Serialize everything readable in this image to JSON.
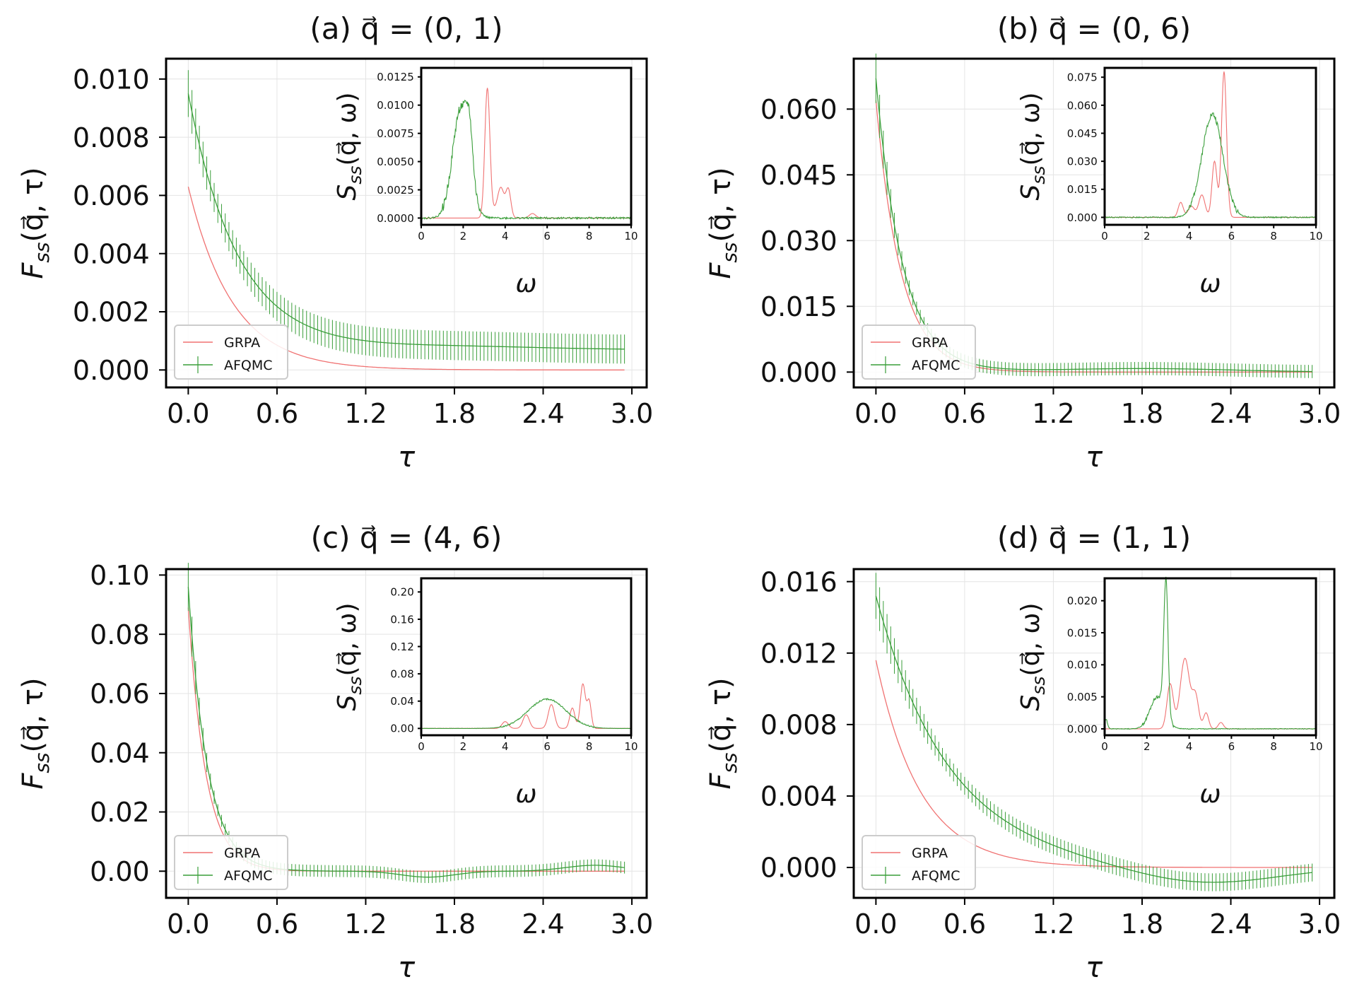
{
  "colors": {
    "grpa": "#f07272",
    "afqmc": "#3a9e3a",
    "axis": "#000000",
    "grid": "#e4e4e4"
  },
  "legend": [
    "GRPA",
    "AFQMC"
  ],
  "chart_data": [
    {
      "id": "a",
      "type": "line",
      "title": "(a)  q⃗ = (0, 1)",
      "panel_label": "(a)",
      "q_label": "q⃗ = (0, 1)",
      "xlabel": "τ",
      "ylabel": "F_ss(q⃗, τ)",
      "xlim": [
        -0.15,
        3.1
      ],
      "ylim": [
        -0.0006,
        0.0107
      ],
      "xticks": [
        "0.0",
        "0.6",
        "1.2",
        "1.8",
        "2.4",
        "3.0"
      ],
      "yticks": [
        "0.000",
        "0.002",
        "0.004",
        "0.006",
        "0.008",
        "0.010"
      ],
      "legend_position": "lower left",
      "series": [
        {
          "name": "GRPA",
          "model": {
            "A": 0.0063,
            "tau": 0.3,
            "osc": [],
            "min_err": 0
          }
        },
        {
          "name": "AFQMC",
          "errorbars": true,
          "model": {
            "A": 0.0095,
            "tau": 0.34,
            "c": 0.0007,
            "osc": [
              [
                0.0001,
                1.8,
                0.6
              ]
            ],
            "min_err": 0.0005
          }
        }
      ],
      "inset": {
        "type": "line",
        "xlabel": "ω",
        "ylabel": "S_ss(q⃗, ω)",
        "xlim": [
          0,
          10
        ],
        "ylim": [
          -0.0006,
          0.0133
        ],
        "xticks": [
          "0",
          "2",
          "4",
          "6",
          "8",
          "10"
        ],
        "yticks": [
          "0.0000",
          "0.0025",
          "0.0050",
          "0.0075",
          "0.0100",
          "0.0125"
        ],
        "series": [
          {
            "name": "GRPA",
            "peaks": [
              [
                3.15,
                0.0114,
                0.12
              ],
              [
                3.8,
                0.0025,
                0.15
              ],
              [
                4.15,
                0.0025,
                0.12
              ],
              [
                5.3,
                0.0004,
                0.15
              ],
              [
                3.5,
                0.0006,
                0.2
              ]
            ],
            "noise": 0
          },
          {
            "name": "AFQMC",
            "peaks": [
              [
                1.9,
                0.0098,
                0.4
              ],
              [
                2.3,
                0.0035,
                0.15
              ]
            ],
            "noise": 0.0008
          }
        ]
      }
    },
    {
      "id": "b",
      "type": "line",
      "title": "(b)  q⃗ = (0, 6)",
      "panel_label": "(b)",
      "q_label": "q⃗ = (0, 6)",
      "xlabel": "τ",
      "ylabel": "F_ss(q⃗, τ)",
      "xlim": [
        -0.15,
        3.1
      ],
      "ylim": [
        -0.0035,
        0.0715
      ],
      "xticks": [
        "0.0",
        "0.6",
        "1.2",
        "1.8",
        "2.4",
        "3.0"
      ],
      "yticks": [
        "0.000",
        "0.015",
        "0.030",
        "0.045",
        "0.060"
      ],
      "legend_position": "lower left",
      "series": [
        {
          "name": "GRPA",
          "model": {
            "A": 0.062,
            "tau": 0.17,
            "osc": [],
            "min_err": 0
          }
        },
        {
          "name": "AFQMC",
          "errorbars": true,
          "model": {
            "A": 0.067,
            "tau": 0.18,
            "c": 0.0,
            "osc": [
              [
                0.0008,
                1.8,
                0.6
              ]
            ],
            "min_err": 0.0015
          }
        }
      ],
      "inset": {
        "type": "line",
        "xlabel": "ω",
        "ylabel": "S_ss(q⃗, ω)",
        "xlim": [
          0,
          10
        ],
        "ylim": [
          -0.004,
          0.08
        ],
        "xticks": [
          "0",
          "2",
          "4",
          "6",
          "8",
          "10"
        ],
        "yticks": [
          "0.000",
          "0.015",
          "0.030",
          "0.045",
          "0.060",
          "0.075"
        ],
        "series": [
          {
            "name": "GRPA",
            "peaks": [
              [
                5.65,
                0.078,
                0.12
              ],
              [
                5.2,
                0.03,
                0.12
              ],
              [
                4.6,
                0.012,
                0.15
              ],
              [
                3.6,
                0.008,
                0.12
              ],
              [
                4.1,
                0.006,
                0.15
              ]
            ],
            "noise": 0
          },
          {
            "name": "AFQMC",
            "peaks": [
              [
                5.1,
                0.055,
                0.5
              ]
            ],
            "noise": 0.003
          }
        ]
      }
    },
    {
      "id": "c",
      "type": "line",
      "title": "(c)  q⃗ = (4, 6)",
      "panel_label": "(c)",
      "q_label": "q⃗ = (4, 6)",
      "xlabel": "τ",
      "ylabel": "F_ss(q⃗, τ)",
      "xlim": [
        -0.15,
        3.1
      ],
      "ylim": [
        -0.009,
        0.102
      ],
      "xticks": [
        "0.0",
        "0.6",
        "1.2",
        "1.8",
        "2.4",
        "3.0"
      ],
      "yticks": [
        "0.00",
        "0.02",
        "0.04",
        "0.06",
        "0.08",
        "0.10"
      ],
      "legend_position": "lower left",
      "series": [
        {
          "name": "GRPA",
          "model": {
            "A": 0.089,
            "tau": 0.12,
            "osc": [],
            "min_err": 0
          }
        },
        {
          "name": "AFQMC",
          "errorbars": true,
          "model": {
            "A": 0.096,
            "tau": 0.13,
            "c": 0.0,
            "osc": [
              [
                -0.002,
                1.62,
                0.18
              ],
              [
                0.002,
                2.75,
                0.2
              ]
            ],
            "min_err": 0.002
          }
        }
      ],
      "inset": {
        "type": "line",
        "xlabel": "ω",
        "ylabel": "S_ss(q⃗, ω)",
        "xlim": [
          0,
          10
        ],
        "ylim": [
          -0.01,
          0.22
        ],
        "xticks": [
          "0",
          "2",
          "4",
          "6",
          "8",
          "10"
        ],
        "yticks": [
          "0.00",
          "0.04",
          "0.08",
          "0.12",
          "0.16",
          "0.20"
        ],
        "series": [
          {
            "name": "GRPA",
            "peaks": [
              [
                7.7,
                0.065,
                0.12
              ],
              [
                8.0,
                0.04,
                0.1
              ],
              [
                7.2,
                0.03,
                0.12
              ],
              [
                6.2,
                0.035,
                0.15
              ],
              [
                5.0,
                0.02,
                0.15
              ],
              [
                4.0,
                0.01,
                0.15
              ]
            ],
            "noise": 0
          },
          {
            "name": "AFQMC",
            "peaks": [
              [
                6.0,
                0.043,
                0.9
              ]
            ],
            "noise": 0.002
          }
        ]
      }
    },
    {
      "id": "d",
      "type": "line",
      "title": "(d)  q⃗ = (1, 1)",
      "panel_label": "(d)",
      "q_label": "q⃗ = (1, 1)",
      "xlabel": "τ",
      "ylabel": "F_ss(q⃗, τ)",
      "xlim": [
        -0.15,
        3.1
      ],
      "ylim": [
        -0.0017,
        0.0167
      ],
      "xticks": [
        "0.0",
        "0.6",
        "1.2",
        "1.8",
        "2.4",
        "3.0"
      ],
      "yticks": [
        "0.000",
        "0.004",
        "0.008",
        "0.012",
        "0.016"
      ],
      "legend_position": "lower left",
      "series": [
        {
          "name": "GRPA",
          "model": {
            "A": 0.0116,
            "tau": 0.3,
            "osc": [],
            "min_err": 0
          }
        },
        {
          "name": "AFQMC",
          "errorbars": true,
          "model": {
            "A": 0.0152,
            "tau": 0.5,
            "c": 0.0,
            "osc": [
              [
                -0.001,
                2.2,
                0.5
              ]
            ],
            "min_err": 0.0005
          }
        }
      ],
      "inset": {
        "type": "line",
        "xlabel": "ω",
        "ylabel": "S_ss(q⃗, ω)",
        "xlim": [
          0,
          10
        ],
        "ylim": [
          -0.001,
          0.0235
        ],
        "xticks": [
          "0",
          "2",
          "4",
          "6",
          "8",
          "10"
        ],
        "yticks": [
          "0.000",
          "0.005",
          "0.010",
          "0.015",
          "0.020"
        ],
        "series": [
          {
            "name": "GRPA",
            "peaks": [
              [
                3.8,
                0.011,
                0.22
              ],
              [
                3.1,
                0.007,
                0.15
              ],
              [
                4.3,
                0.005,
                0.15
              ],
              [
                4.8,
                0.0025,
                0.12
              ],
              [
                5.5,
                0.001,
                0.12
              ]
            ],
            "noise": 0
          },
          {
            "name": "AFQMC",
            "peaks": [
              [
                2.9,
                0.021,
                0.1
              ],
              [
                2.5,
                0.005,
                0.35
              ],
              [
                0.05,
                0.0015,
                0.08
              ]
            ],
            "noise": 0.0005
          }
        ]
      }
    }
  ]
}
